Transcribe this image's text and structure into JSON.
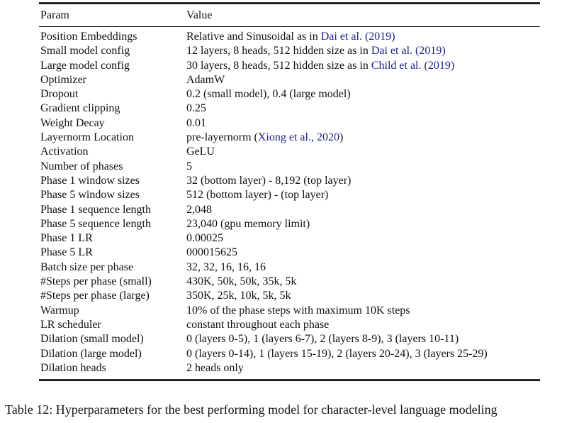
{
  "page": {
    "caption": "Table 12: Hyperparameters for the best performing model for character-level language modeling"
  },
  "table": {
    "headers": [
      "Param",
      "Value"
    ],
    "link_color": "#20208c",
    "rows": [
      {
        "param": "Position Embeddings",
        "value": [
          {
            "t": "Relative and Sinusoidal as in "
          },
          {
            "t": "Dai et al. (2019)",
            "link": true
          }
        ]
      },
      {
        "param": "Small model config",
        "value": [
          {
            "t": "12 layers, 8 heads, 512 hidden size as in "
          },
          {
            "t": "Dai et al. (2019)",
            "link": true
          }
        ]
      },
      {
        "param": "Large model config",
        "value": [
          {
            "t": "30 layers, 8 heads, 512 hidden size as in "
          },
          {
            "t": "Child et al. (2019)",
            "link": true
          }
        ]
      },
      {
        "param": "Optimizer",
        "value": [
          {
            "t": "AdamW"
          }
        ]
      },
      {
        "param": "Dropout",
        "value": [
          {
            "t": "0.2 (small model), 0.4 (large model)"
          }
        ]
      },
      {
        "param": "Gradient clipping",
        "value": [
          {
            "t": "0.25"
          }
        ]
      },
      {
        "param": "Weight Decay",
        "value": [
          {
            "t": "0.01"
          }
        ]
      },
      {
        "param": "Layernorm Location",
        "value": [
          {
            "t": "pre-layernorm ("
          },
          {
            "t": "Xiong et al., 2020",
            "link": true
          },
          {
            "t": ")"
          }
        ]
      },
      {
        "param": "Activation",
        "value": [
          {
            "t": "GeLU"
          }
        ]
      },
      {
        "param": "Number of phases",
        "value": [
          {
            "t": "5"
          }
        ]
      },
      {
        "param": "Phase 1 window sizes",
        "value": [
          {
            "t": "32 (bottom layer) - 8,192 (top layer)"
          }
        ]
      },
      {
        "param": "Phase 5 window sizes",
        "value": [
          {
            "t": "512 (bottom layer) - (top layer)"
          }
        ]
      },
      {
        "param": "Phase 1 sequence length",
        "value": [
          {
            "t": "2,048"
          }
        ]
      },
      {
        "param": "Phase 5 sequence length",
        "value": [
          {
            "t": "23,040 (gpu memory limit)"
          }
        ]
      },
      {
        "param": "Phase 1 LR",
        "value": [
          {
            "t": "0.00025"
          }
        ]
      },
      {
        "param": "Phase 5 LR",
        "value": [
          {
            "t": "000015625"
          }
        ]
      },
      {
        "param": "Batch size per phase",
        "value": [
          {
            "t": "32, 32, 16, 16, 16"
          }
        ]
      },
      {
        "param": "#Steps per phase (small)",
        "value": [
          {
            "t": "430K, 50k, 50k, 35k, 5k"
          }
        ]
      },
      {
        "param": "#Steps per phase (large)",
        "value": [
          {
            "t": "350K, 25k, 10k, 5k, 5k"
          }
        ]
      },
      {
        "param": "Warmup",
        "value": [
          {
            "t": "10% of the phase steps with maximum 10K steps"
          }
        ]
      },
      {
        "param": "LR scheduler",
        "value": [
          {
            "t": "constant throughout each phase"
          }
        ]
      },
      {
        "param": "Dilation (small model)",
        "value": [
          {
            "t": "0 (layers 0-5), 1 (layers 6-7), 2 (layers 8-9), 3 (layers 10-11)"
          }
        ]
      },
      {
        "param": "Dilation (large model)",
        "value": [
          {
            "t": "0 (layers 0-14), 1 (layers 15-19), 2 (layers 20-24), 3 (layers 25-29)"
          }
        ]
      },
      {
        "param": "Dilation heads",
        "value": [
          {
            "t": "2 heads only"
          }
        ]
      }
    ]
  }
}
